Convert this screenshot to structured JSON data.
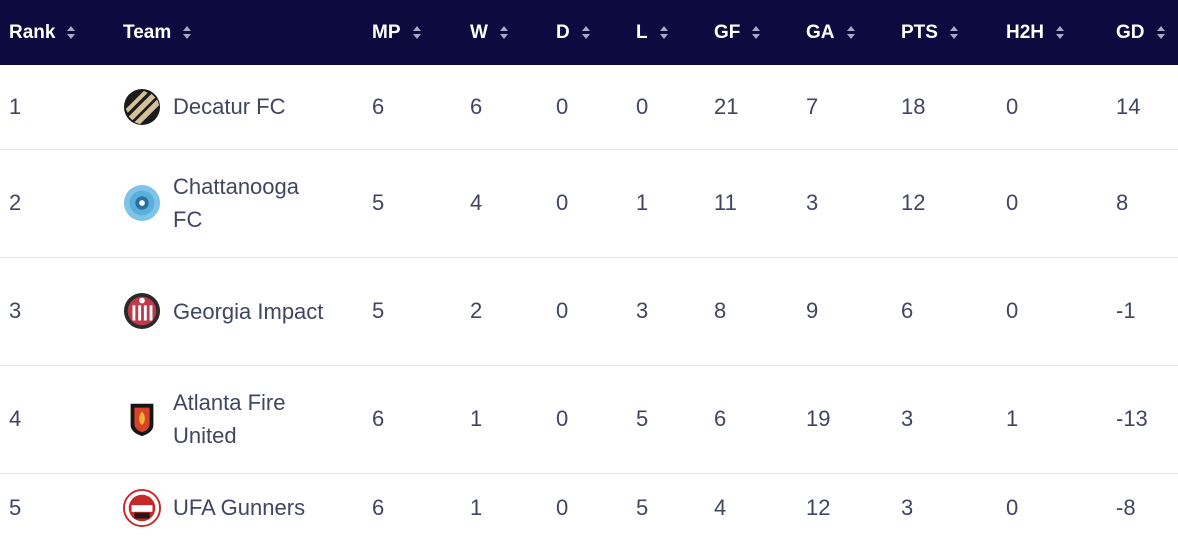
{
  "colors": {
    "header_bg": "#0c0a3e",
    "header_text": "#ffffff",
    "cell_text": "#3f4660",
    "row_divider": "#e8e8ee"
  },
  "columns": [
    {
      "label": "Rank"
    },
    {
      "label": "Team"
    },
    {
      "label": "MP"
    },
    {
      "label": "W"
    },
    {
      "label": "D"
    },
    {
      "label": "L"
    },
    {
      "label": "GF"
    },
    {
      "label": "GA"
    },
    {
      "label": "PTS"
    },
    {
      "label": "H2H"
    },
    {
      "label": "GD"
    }
  ],
  "rows": [
    {
      "rank": "1",
      "team": "Decatur FC",
      "logo": "decatur-fc-logo",
      "mp": "6",
      "w": "6",
      "d": "0",
      "l": "0",
      "gf": "21",
      "ga": "7",
      "pts": "18",
      "h2h": "0",
      "gd": "14"
    },
    {
      "rank": "2",
      "team": "Chattanooga FC",
      "logo": "chattanooga-fc-logo",
      "mp": "5",
      "w": "4",
      "d": "0",
      "l": "1",
      "gf": "11",
      "ga": "3",
      "pts": "12",
      "h2h": "0",
      "gd": "8"
    },
    {
      "rank": "3",
      "team": "Georgia Impact",
      "logo": "georgia-impact-logo",
      "mp": "5",
      "w": "2",
      "d": "0",
      "l": "3",
      "gf": "8",
      "ga": "9",
      "pts": "6",
      "h2h": "0",
      "gd": "-1"
    },
    {
      "rank": "4",
      "team": "Atlanta Fire United",
      "logo": "atlanta-fire-united-logo",
      "mp": "6",
      "w": "1",
      "d": "0",
      "l": "5",
      "gf": "6",
      "ga": "19",
      "pts": "3",
      "h2h": "1",
      "gd": "-13"
    },
    {
      "rank": "5",
      "team": "UFA Gunners",
      "logo": "ufa-gunners-logo",
      "mp": "6",
      "w": "1",
      "d": "0",
      "l": "5",
      "gf": "4",
      "ga": "12",
      "pts": "3",
      "h2h": "0",
      "gd": "-8"
    }
  ]
}
